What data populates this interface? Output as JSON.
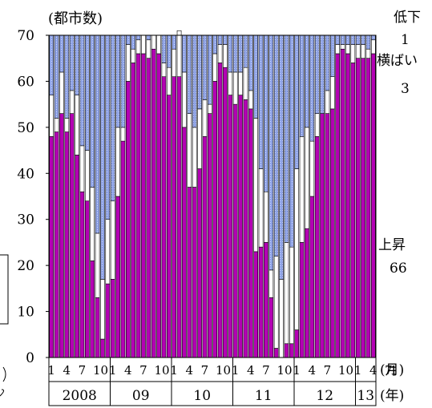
{
  "chart_data": {
    "type": "bar",
    "stacked": true,
    "y_unit_label": "(都市数)",
    "ylim": [
      0,
      70
    ],
    "yticks": [
      0,
      10,
      20,
      30,
      40,
      50,
      60,
      70
    ],
    "month_ticks": [
      "1",
      "4",
      "7",
      "10",
      "1",
      "4",
      "7",
      "10",
      "1",
      "4",
      "7",
      "10",
      "1",
      "4",
      "7",
      "10",
      "1",
      "4",
      "7",
      "10",
      "1",
      "4",
      "7",
      "1"
    ],
    "month_axis_label": "(月)",
    "year_ticks": [
      "2008",
      "09",
      "10",
      "11",
      "12",
      "13"
    ],
    "year_axis_label": "(年)",
    "legend": {
      "placement": "right"
    },
    "series": [
      {
        "name": "低下",
        "color": "#8fa3e6",
        "latest": "1"
      },
      {
        "name": "横ばい",
        "color": "#ffffff",
        "latest": "3"
      },
      {
        "name": "上昇",
        "color": "#b400b4",
        "latest": "66"
      }
    ],
    "values": {
      "上昇": [
        48,
        49,
        53,
        49,
        53,
        44,
        36,
        34,
        21,
        13,
        4,
        16,
        17,
        35,
        47,
        60,
        64,
        66,
        66,
        65,
        67,
        66,
        61,
        57,
        61,
        61,
        50,
        37,
        37,
        41,
        48,
        53,
        60,
        64,
        63,
        57,
        55,
        57,
        56,
        54,
        23,
        24,
        25,
        13,
        2,
        0,
        3,
        3,
        6,
        25,
        28,
        35,
        48,
        53,
        53,
        54,
        66,
        67,
        66,
        64,
        65,
        65,
        65,
        66
      ],
      "横ばい": [
        9,
        3,
        9,
        3,
        5,
        13,
        10,
        11,
        16,
        14,
        13,
        14,
        17,
        15,
        3,
        8,
        3,
        3,
        4,
        4,
        3,
        4,
        3,
        6,
        6,
        10,
        12,
        16,
        13,
        13,
        8,
        2,
        6,
        4,
        5,
        5,
        7,
        5,
        7,
        4,
        29,
        17,
        11,
        6,
        20,
        17,
        22,
        21,
        35,
        23,
        22,
        12,
        5,
        0,
        5,
        7,
        2,
        1,
        2,
        4,
        3,
        3,
        2,
        3
      ],
      "低下": [
        13,
        18,
        8,
        18,
        12,
        13,
        24,
        25,
        33,
        43,
        53,
        40,
        36,
        20,
        20,
        2,
        3,
        1,
        0,
        1,
        0,
        0,
        6,
        7,
        3,
        0,
        8,
        17,
        20,
        16,
        14,
        15,
        4,
        2,
        2,
        8,
        8,
        8,
        7,
        12,
        18,
        29,
        34,
        51,
        48,
        53,
        45,
        46,
        29,
        22,
        20,
        23,
        17,
        17,
        12,
        9,
        2,
        2,
        2,
        2,
        2,
        2,
        3,
        1
      ]
    }
  }
}
